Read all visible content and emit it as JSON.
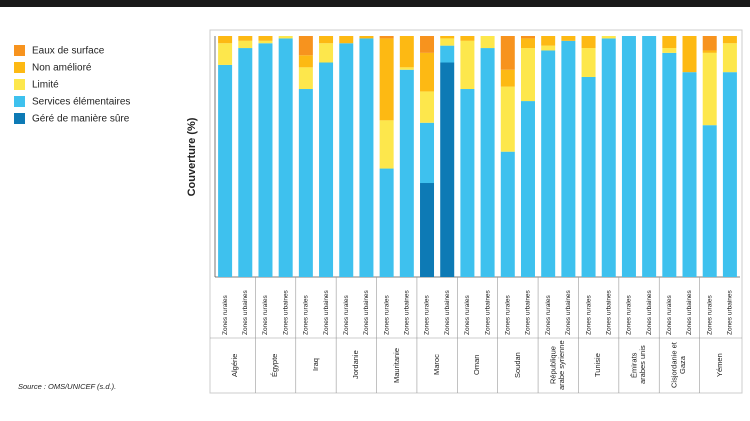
{
  "chart_data": {
    "type": "stacked_bar",
    "y_label": "Couverture (%)",
    "source": "Source : OMS/UNICEF (s.d.).",
    "categories": [
      "Zones rurales",
      "Zones urbaines",
      "Zones rurales",
      "Zones urbaines",
      "Zones rurales",
      "Zones urbaines",
      "Zones rurales",
      "Zones urbaines",
      "Zones rurales",
      "Zones urbaines",
      "Zones rurales",
      "Zones urbaines",
      "Zones rurales",
      "Zones urbaines",
      "Zones rurales",
      "Zones urbaines",
      "Zones rurales",
      "Zones urbaines",
      "Zones rurales",
      "Zones urbaines",
      "Zones rurales",
      "Zones urbaines",
      "Zones rurales",
      "Zones urbaines",
      "Zones rurales",
      "Zones urbaines"
    ],
    "groups": [
      "Algérie",
      "Égypte",
      "Iraq",
      "Jordanie",
      "Mauritanie",
      "Maroc",
      "Oman",
      "Soudan",
      "République arabe syrienne",
      "Tunisie",
      "Émirats arabes unis",
      "Cisjordanie et Gaza",
      "Yémen"
    ],
    "ylim": [
      0,
      100
    ],
    "series": [
      {
        "name": "Géré de manière sûre",
        "color": "#0d7ab5",
        "values": [
          0,
          0,
          0,
          0,
          0,
          0,
          0,
          0,
          0,
          0,
          39,
          89,
          0,
          0,
          0,
          0,
          0,
          0,
          0,
          0,
          0,
          0,
          0,
          0,
          0,
          0
        ]
      },
      {
        "name": "Services élémentaires",
        "color": "#3ec1ee",
        "values": [
          88,
          95,
          97,
          99,
          78,
          89,
          97,
          99,
          45,
          86,
          25,
          7,
          78,
          95,
          52,
          73,
          94,
          98,
          83,
          99,
          100,
          100,
          93,
          85,
          63,
          85
        ]
      },
      {
        "name": "Limité",
        "color": "#fde74c",
        "values": [
          9,
          3,
          1,
          1,
          9,
          8,
          0,
          0,
          20,
          1,
          13,
          3,
          20,
          5,
          27,
          22,
          2,
          0,
          12,
          1,
          0,
          0,
          2,
          0,
          30,
          12
        ]
      },
      {
        "name": "Non amélioré",
        "color": "#fdb913",
        "values": [
          3,
          2,
          2,
          0,
          5,
          3,
          3,
          1,
          34,
          13,
          16,
          1,
          2,
          0,
          7,
          4,
          4,
          2,
          5,
          0,
          0,
          0,
          5,
          15,
          1,
          3
        ]
      },
      {
        "name": "Eaux de surface",
        "color": "#f7931e",
        "values": [
          0,
          0,
          0,
          0,
          8,
          0,
          0,
          0,
          1,
          0,
          7,
          0,
          0,
          0,
          14,
          1,
          0,
          0,
          0,
          0,
          0,
          0,
          0,
          0,
          6,
          0
        ]
      }
    ]
  }
}
